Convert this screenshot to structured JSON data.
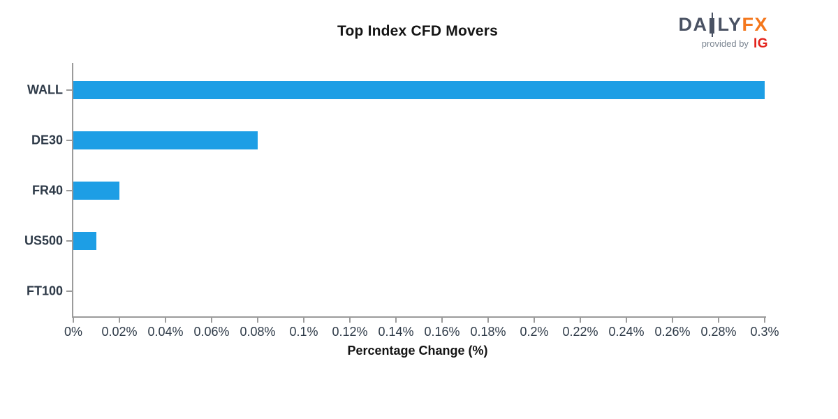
{
  "header": {
    "logo": {
      "daily_left": "DA",
      "daily_right": "LY",
      "fx": "FX",
      "provided_by": "provided by",
      "ig": "IG"
    }
  },
  "colors": {
    "bar": "#1D9EE5",
    "axis": "#9B9B9B",
    "tick_label": "#2E3A48",
    "title": "#141414",
    "logo_slate": "#4A5263",
    "logo_orange": "#F4771C",
    "logo_gray": "#7B8591",
    "logo_red": "#E3231B"
  },
  "chart_data": {
    "type": "bar",
    "orientation": "horizontal",
    "title": "Top Index CFD Movers",
    "xlabel": "Percentage Change (%)",
    "ylabel": "",
    "categories": [
      "WALL",
      "DE30",
      "FR40",
      "US500",
      "FT100"
    ],
    "values": [
      0.3,
      0.08,
      0.02,
      0.01,
      0.0
    ],
    "unit": "%",
    "xlim": [
      0,
      0.3
    ],
    "x_tick_values": [
      0,
      0.02,
      0.04,
      0.06,
      0.08,
      0.1,
      0.12,
      0.14,
      0.16,
      0.18,
      0.2,
      0.22,
      0.24,
      0.26,
      0.28,
      0.3
    ],
    "x_ticks": [
      "0%",
      "0.02%",
      "0.04%",
      "0.06%",
      "0.08%",
      "0.1%",
      "0.12%",
      "0.14%",
      "0.16%",
      "0.18%",
      "0.2%",
      "0.22%",
      "0.24%",
      "0.26%",
      "0.28%",
      "0.3%"
    ],
    "grid": false,
    "legend": false
  }
}
